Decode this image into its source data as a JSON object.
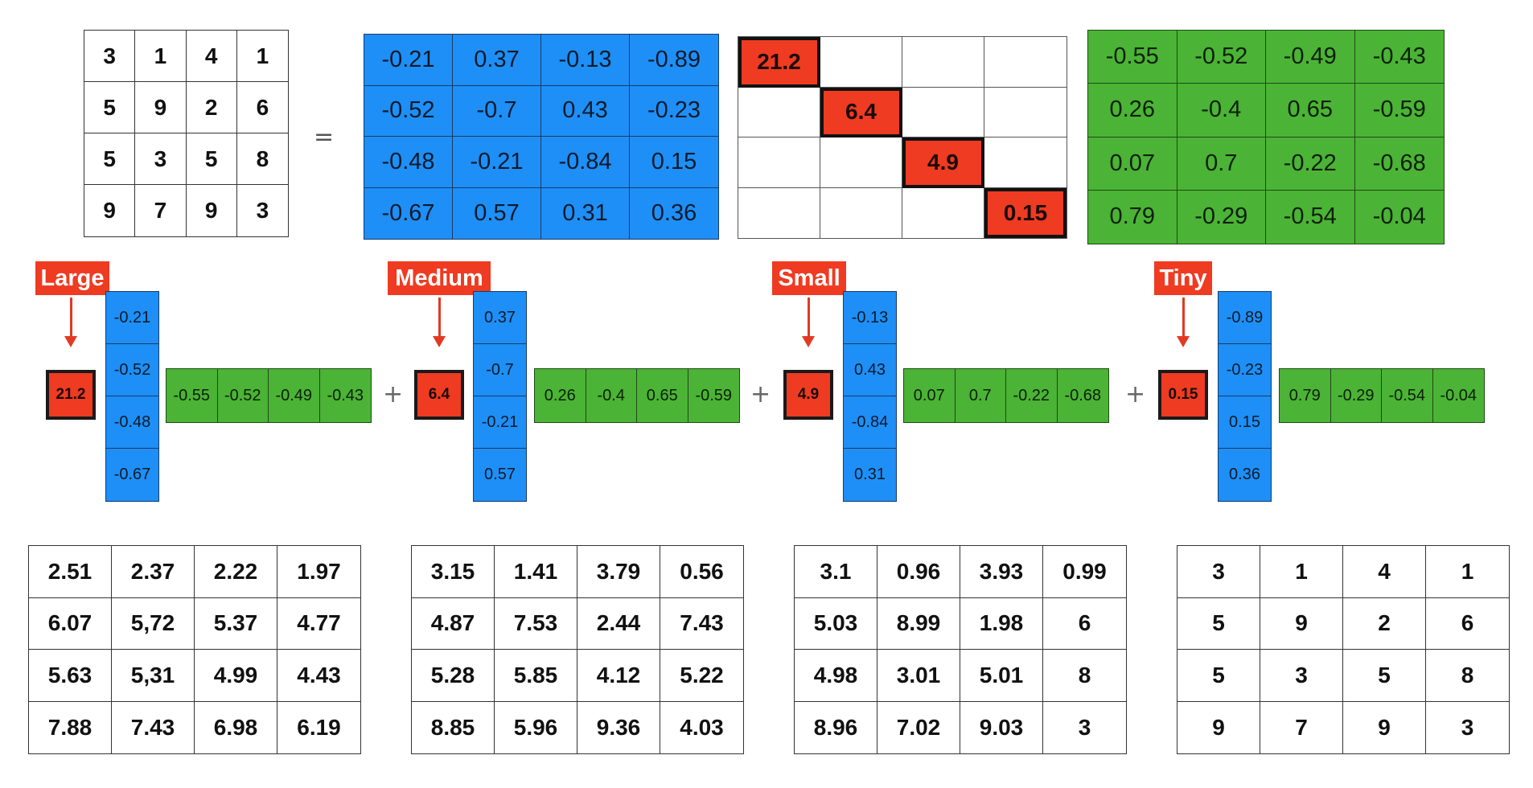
{
  "equation": {
    "equals_symbol": "=",
    "original_matrix": [
      [
        "3",
        "1",
        "4",
        "1"
      ],
      [
        "5",
        "9",
        "2",
        "6"
      ],
      [
        "5",
        "3",
        "5",
        "8"
      ],
      [
        "9",
        "7",
        "9",
        "3"
      ]
    ],
    "U_matrix": [
      [
        "-0.21",
        "0.37",
        "-0.13",
        "-0.89"
      ],
      [
        "-0.52",
        "-0.7",
        "0.43",
        "-0.23"
      ],
      [
        "-0.48",
        "-0.21",
        "-0.84",
        "0.15"
      ],
      [
        "-0.67",
        "0.57",
        "0.31",
        "0.36"
      ]
    ],
    "sigma_diagonal": [
      "21.2",
      "6.4",
      "4.9",
      "0.15"
    ],
    "VT_matrix": [
      [
        "-0.55",
        "-0.52",
        "-0.49",
        "-0.43"
      ],
      [
        "0.26",
        "-0.4",
        "0.65",
        "-0.59"
      ],
      [
        "0.07",
        "0.7",
        "-0.22",
        "-0.68"
      ],
      [
        "0.79",
        "-0.29",
        "-0.54",
        "-0.04"
      ]
    ]
  },
  "terms": [
    {
      "label": "Large",
      "singular_value": "21.2",
      "u_column": [
        "-0.21",
        "-0.52",
        "-0.48",
        "-0.67"
      ],
      "v_row": [
        "-0.55",
        "-0.52",
        "-0.49",
        "-0.43"
      ]
    },
    {
      "label": "Medium",
      "singular_value": "6.4",
      "u_column": [
        "0.37",
        "-0.7",
        "-0.21",
        "0.57"
      ],
      "v_row": [
        "0.26",
        "-0.4",
        "0.65",
        "-0.59"
      ]
    },
    {
      "label": "Small",
      "singular_value": "4.9",
      "u_column": [
        "-0.13",
        "0.43",
        "-0.84",
        "0.31"
      ],
      "v_row": [
        "0.07",
        "0.7",
        "-0.22",
        "-0.68"
      ]
    },
    {
      "label": "Tiny",
      "singular_value": "0.15",
      "u_column": [
        "-0.89",
        "-0.23",
        "0.15",
        "0.36"
      ],
      "v_row": [
        "0.79",
        "-0.29",
        "-0.54",
        "-0.04"
      ]
    }
  ],
  "plus_symbol": "+",
  "partial_sums": [
    [
      [
        "2.51",
        "2.37",
        "2.22",
        "1.97"
      ],
      [
        "6.07",
        "5,72",
        "5.37",
        "4.77"
      ],
      [
        "5.63",
        "5,31",
        "4.99",
        "4.43"
      ],
      [
        "7.88",
        "7.43",
        "6.98",
        "6.19"
      ]
    ],
    [
      [
        "3.15",
        "1.41",
        "3.79",
        "0.56"
      ],
      [
        "4.87",
        "7.53",
        "2.44",
        "7.43"
      ],
      [
        "5.28",
        "5.85",
        "4.12",
        "5.22"
      ],
      [
        "8.85",
        "5.96",
        "9.36",
        "4.03"
      ]
    ],
    [
      [
        "3.1",
        "0.96",
        "3.93",
        "0.99"
      ],
      [
        "5.03",
        "8.99",
        "1.98",
        "6"
      ],
      [
        "4.98",
        "3.01",
        "5.01",
        "8"
      ],
      [
        "8.96",
        "7.02",
        "9.03",
        "3"
      ]
    ],
    [
      [
        "3",
        "1",
        "4",
        "1"
      ],
      [
        "5",
        "9",
        "2",
        "6"
      ],
      [
        "5",
        "3",
        "5",
        "8"
      ],
      [
        "9",
        "7",
        "9",
        "3"
      ]
    ]
  ],
  "colors": {
    "blue": "#1e8ff6",
    "green": "#4bb335",
    "red": "#ee3b22"
  }
}
